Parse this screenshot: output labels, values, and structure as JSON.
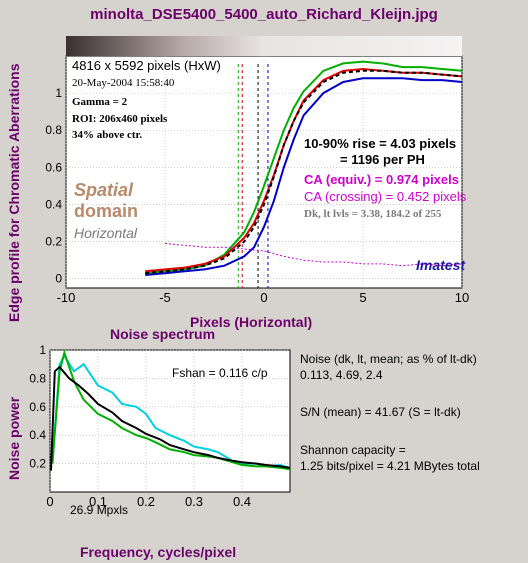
{
  "title": "minolta_DSE5400_5400_auto_Richard_Kleijn.jpg",
  "colors": {
    "red": "#e00000",
    "green": "#00b000",
    "blue": "#0000c8",
    "magenta": "#d000d0",
    "purple": "#6b006b",
    "cyan": "#00d0e0",
    "tan": "#b88a6a"
  },
  "top_panel": {
    "ylabel": "Edge profile for Chromatic Aberrations",
    "xlabel": "Pixels (Horizontal)",
    "info": {
      "size": "4816 x 5592 pixels (HxW)",
      "date": "20-May-2004 15:58:40",
      "gamma": "Gamma = 2",
      "roi": "ROI: 206x460 pixels",
      "above": "34% above ctr."
    },
    "rise1": "10-90% rise = 4.03 pixels",
    "rise2": "= 1196 per PH",
    "ca_equiv": "CA (equiv.) = 0.974 pixels",
    "ca_cross": "CA (crossing) = 0.452 pixels",
    "dk_lt": "Dk, lt lvls = 3.38, 184.2 of 255",
    "spatial": "Spatial",
    "domain": "domain",
    "horizontal": "Horizontal",
    "imatest": "Imatest"
  },
  "bottom_panel": {
    "title": "Noise spectrum",
    "ylabel": "Noise power",
    "xlabel": "Frequency, cycles/pixel",
    "fshan": "Fshan = 0.116 c/p",
    "mpxls": "26.9 Mpxls",
    "noise_label": "Noise (dk, lt, mean; as % of lt-dk)",
    "noise_values": "0.113,  4.69,  2.4",
    "sn": "S/N (mean) = 41.67  (S = lt-dk)",
    "shannon1": "Shannon capacity =",
    "shannon2": "1.25 bits/pixel = 4.21 MBytes total"
  },
  "chart_data": [
    {
      "type": "line",
      "xlim": [
        -10,
        10
      ],
      "ylim": [
        -0.05,
        1.2
      ],
      "xticks": [
        -10,
        -5,
        0,
        5,
        10
      ],
      "xtick_labels": [
        "-10",
        "-5",
        "0",
        "5",
        "10"
      ],
      "yticks": [
        0,
        0.2,
        0.4,
        0.6,
        0.8,
        1
      ],
      "ytick_labels": [
        "0",
        "0.2",
        "0.4",
        "0.6",
        "0.8",
        "1"
      ],
      "grid": true,
      "series": [
        {
          "color": "green",
          "x": [
            -6,
            -5,
            -4,
            -3,
            -2,
            -1,
            -0.5,
            0,
            0.5,
            1,
            1.5,
            2,
            3,
            4,
            5,
            6,
            7,
            8,
            9,
            10
          ],
          "y": [
            0.03,
            0.04,
            0.05,
            0.07,
            0.13,
            0.25,
            0.36,
            0.5,
            0.65,
            0.8,
            0.92,
            1.01,
            1.12,
            1.16,
            1.17,
            1.16,
            1.14,
            1.14,
            1.13,
            1.12
          ]
        },
        {
          "color": "red",
          "x": [
            -6,
            -5,
            -4,
            -3,
            -2,
            -1,
            -0.5,
            0,
            0.5,
            1,
            1.5,
            2,
            3,
            4,
            5,
            6,
            7,
            8,
            9,
            10
          ],
          "y": [
            0.04,
            0.05,
            0.06,
            0.08,
            0.12,
            0.22,
            0.3,
            0.42,
            0.56,
            0.72,
            0.85,
            0.96,
            1.07,
            1.12,
            1.13,
            1.12,
            1.11,
            1.11,
            1.1,
            1.09
          ]
        },
        {
          "color": "blue",
          "x": [
            -6,
            -5,
            -4,
            -3,
            -2,
            -1,
            -0.5,
            0,
            0.5,
            1,
            1.5,
            2,
            3,
            4,
            5,
            6,
            7,
            8,
            9,
            10
          ],
          "y": [
            0.02,
            0.03,
            0.04,
            0.05,
            0.07,
            0.12,
            0.17,
            0.28,
            0.42,
            0.6,
            0.75,
            0.88,
            1.0,
            1.06,
            1.08,
            1.08,
            1.08,
            1.07,
            1.07,
            1.06
          ]
        },
        {
          "color": "magenta",
          "x": [
            -5,
            -4,
            -3,
            -2,
            -1,
            0,
            1,
            2,
            3,
            4,
            5,
            6,
            7,
            8,
            9,
            10
          ],
          "y": [
            0.19,
            0.18,
            0.17,
            0.17,
            0.16,
            0.15,
            0.12,
            0.1,
            0.09,
            0.09,
            0.08,
            0.08,
            0.07,
            0.08,
            0.07,
            0.08
          ]
        },
        {
          "color": "black",
          "x": [
            -6,
            -5,
            -4,
            -3,
            -2,
            -1,
            -0.5,
            0,
            0.5,
            1,
            1.5,
            2,
            3,
            4,
            5,
            6,
            7,
            8,
            9,
            10
          ],
          "y": [
            0.03,
            0.04,
            0.05,
            0.07,
            0.11,
            0.2,
            0.28,
            0.4,
            0.55,
            0.72,
            0.85,
            0.95,
            1.06,
            1.11,
            1.12,
            1.12,
            1.11,
            1.11,
            1.1,
            1.09
          ]
        }
      ],
      "vlines": [
        {
          "x": -1.3,
          "color": "green"
        },
        {
          "x": -1.1,
          "color": "red"
        },
        {
          "x": -0.3,
          "color": "black"
        },
        {
          "x": 0.2,
          "color": "blue"
        }
      ]
    },
    {
      "type": "line",
      "xlim": [
        0,
        0.5
      ],
      "ylim": [
        0,
        1
      ],
      "xticks": [
        0,
        0.1,
        0.2,
        0.3,
        0.4
      ],
      "xtick_labels": [
        "0",
        "0.1",
        "0.2",
        "0.3",
        "0.4"
      ],
      "yticks": [
        0.2,
        0.4,
        0.6,
        0.8,
        1
      ],
      "ytick_labels": [
        "0.2",
        "0.4",
        "0.6",
        "0.8",
        "1"
      ],
      "grid": true,
      "series": [
        {
          "color": "cyan",
          "x": [
            0.005,
            0.02,
            0.03,
            0.05,
            0.07,
            0.1,
            0.13,
            0.15,
            0.18,
            0.2,
            0.22,
            0.25,
            0.28,
            0.3,
            0.33,
            0.35,
            0.38,
            0.4,
            0.43,
            0.45,
            0.48,
            0.5
          ],
          "y": [
            0.2,
            0.9,
            0.96,
            0.85,
            0.9,
            0.75,
            0.7,
            0.62,
            0.6,
            0.55,
            0.45,
            0.4,
            0.36,
            0.32,
            0.3,
            0.28,
            0.22,
            0.2,
            0.2,
            0.18,
            0.19,
            0.17
          ]
        },
        {
          "color": "green",
          "x": [
            0.005,
            0.02,
            0.03,
            0.05,
            0.07,
            0.1,
            0.13,
            0.15,
            0.18,
            0.2,
            0.22,
            0.25,
            0.28,
            0.3,
            0.33,
            0.35,
            0.38,
            0.4,
            0.43,
            0.45,
            0.48,
            0.5
          ],
          "y": [
            0.2,
            0.85,
            0.98,
            0.78,
            0.65,
            0.55,
            0.5,
            0.45,
            0.4,
            0.38,
            0.35,
            0.3,
            0.28,
            0.26,
            0.25,
            0.24,
            0.21,
            0.19,
            0.18,
            0.18,
            0.17,
            0.16
          ]
        },
        {
          "color": "black",
          "x": [
            0.002,
            0.01,
            0.02,
            0.04,
            0.06,
            0.08,
            0.1,
            0.13,
            0.15,
            0.18,
            0.2,
            0.23,
            0.25,
            0.28,
            0.3,
            0.33,
            0.35,
            0.38,
            0.4,
            0.43,
            0.45,
            0.48,
            0.5
          ],
          "y": [
            0.15,
            0.85,
            0.88,
            0.8,
            0.75,
            0.69,
            0.62,
            0.56,
            0.5,
            0.45,
            0.41,
            0.37,
            0.33,
            0.3,
            0.28,
            0.26,
            0.24,
            0.22,
            0.21,
            0.2,
            0.19,
            0.18,
            0.17
          ]
        }
      ]
    }
  ]
}
